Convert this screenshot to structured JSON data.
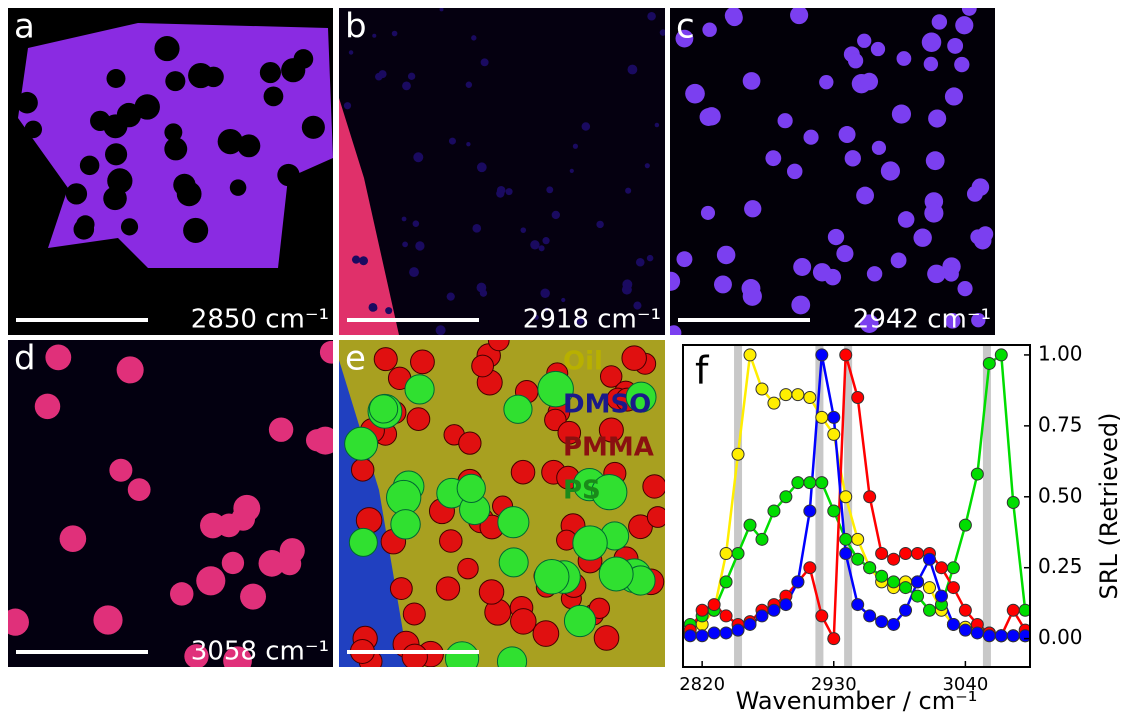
{
  "panels": [
    {
      "label": "a",
      "caption": "2850 cm⁻¹"
    },
    {
      "label": "b",
      "caption": "2918 cm⁻¹"
    },
    {
      "label": "c",
      "caption": "2942 cm⁻¹"
    },
    {
      "label": "d",
      "caption": "3058 cm⁻¹"
    },
    {
      "label": "e",
      "legend": [
        {
          "text": "Oil",
          "color": "#b8b000"
        },
        {
          "text": "DMSO",
          "color": "#1a1a8a"
        },
        {
          "text": "PMMA",
          "color": "#8a1010"
        },
        {
          "text": "PS",
          "color": "#1a8a1a"
        }
      ]
    }
  ],
  "chart_data": {
    "type": "line",
    "panel_label": "f",
    "x_label": "Wavenumber / cm⁻¹",
    "y_label": "SRL  (Retrieved)",
    "xlim": [
      2804,
      3094
    ],
    "xticks": [
      2820,
      2930,
      3040
    ],
    "ylim": [
      -0.1,
      1.035
    ],
    "yticks": [
      {
        "value": 0,
        "label": "0.00"
      },
      {
        "value": 0.25,
        "label": "0.25"
      },
      {
        "value": 0.5,
        "label": "0.50"
      },
      {
        "value": 0.75,
        "label": "0.75"
      },
      {
        "value": 1,
        "label": "1.00"
      }
    ],
    "bands": [
      2850,
      2918,
      2942,
      3058
    ],
    "band_color": "#c8c8c8",
    "x": [
      2810,
      2820,
      2830,
      2840,
      2850,
      2860,
      2870,
      2880,
      2890,
      2900,
      2910,
      2920,
      2930,
      2940,
      2950,
      2960,
      2970,
      2980,
      2990,
      3000,
      3010,
      3020,
      3030,
      3040,
      3050,
      3060,
      3070,
      3080,
      3090
    ],
    "series": [
      {
        "color": "#ffee00",
        "values": [
          0.02,
          0.05,
          0.1,
          0.3,
          0.65,
          1.0,
          0.88,
          0.83,
          0.86,
          0.86,
          0.85,
          0.78,
          0.72,
          0.5,
          0.35,
          0.25,
          0.2,
          0.18,
          0.2,
          0.2,
          0.18,
          0.1,
          0.05,
          0.04,
          0.03,
          0.02,
          0.01,
          0.01,
          0.01
        ]
      },
      {
        "color": "#00dd00",
        "values": [
          0.05,
          0.08,
          0.1,
          0.2,
          0.3,
          0.4,
          0.35,
          0.45,
          0.5,
          0.55,
          0.55,
          0.55,
          0.45,
          0.35,
          0.28,
          0.25,
          0.22,
          0.2,
          0.18,
          0.15,
          0.1,
          0.12,
          0.25,
          0.4,
          0.58,
          0.97,
          1.0,
          0.48,
          0.1
        ]
      },
      {
        "color": "#ff0000",
        "values": [
          0.03,
          0.1,
          0.12,
          0.08,
          0.05,
          0.06,
          0.1,
          0.12,
          0.15,
          0.2,
          0.25,
          0.08,
          0.0,
          1.0,
          0.85,
          0.5,
          0.3,
          0.28,
          0.3,
          0.3,
          0.3,
          0.25,
          0.18,
          0.1,
          0.05,
          0.02,
          0.01,
          0.1,
          0.03
        ]
      },
      {
        "color": "#0000ff",
        "values": [
          0.01,
          0.01,
          0.02,
          0.02,
          0.03,
          0.05,
          0.08,
          0.1,
          0.12,
          0.2,
          0.45,
          1.0,
          0.78,
          0.3,
          0.12,
          0.08,
          0.06,
          0.05,
          0.1,
          0.2,
          0.28,
          0.15,
          0.05,
          0.03,
          0.02,
          0.01,
          0.01,
          0.01,
          0.01
        ]
      }
    ]
  }
}
